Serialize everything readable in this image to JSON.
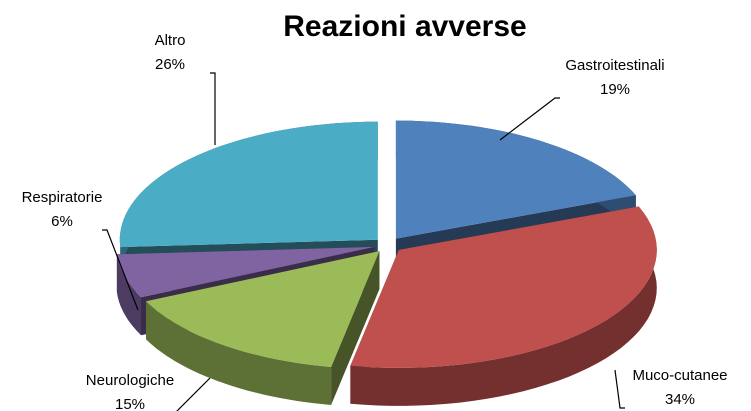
{
  "chart_data": {
    "type": "pie",
    "title": "Reazioni avverse",
    "categories": [
      "Gastroitestinali",
      "Muco-cutanee",
      "Neurologiche",
      "Respiratorie",
      "Altro"
    ],
    "values": [
      19,
      34,
      15,
      6,
      26
    ],
    "value_labels": [
      "19%",
      "34%",
      "15%",
      "6%",
      "26%"
    ],
    "colors": [
      "#4f81bd",
      "#c0504d",
      "#9bbb59",
      "#8064a2",
      "#4bacc6"
    ]
  }
}
